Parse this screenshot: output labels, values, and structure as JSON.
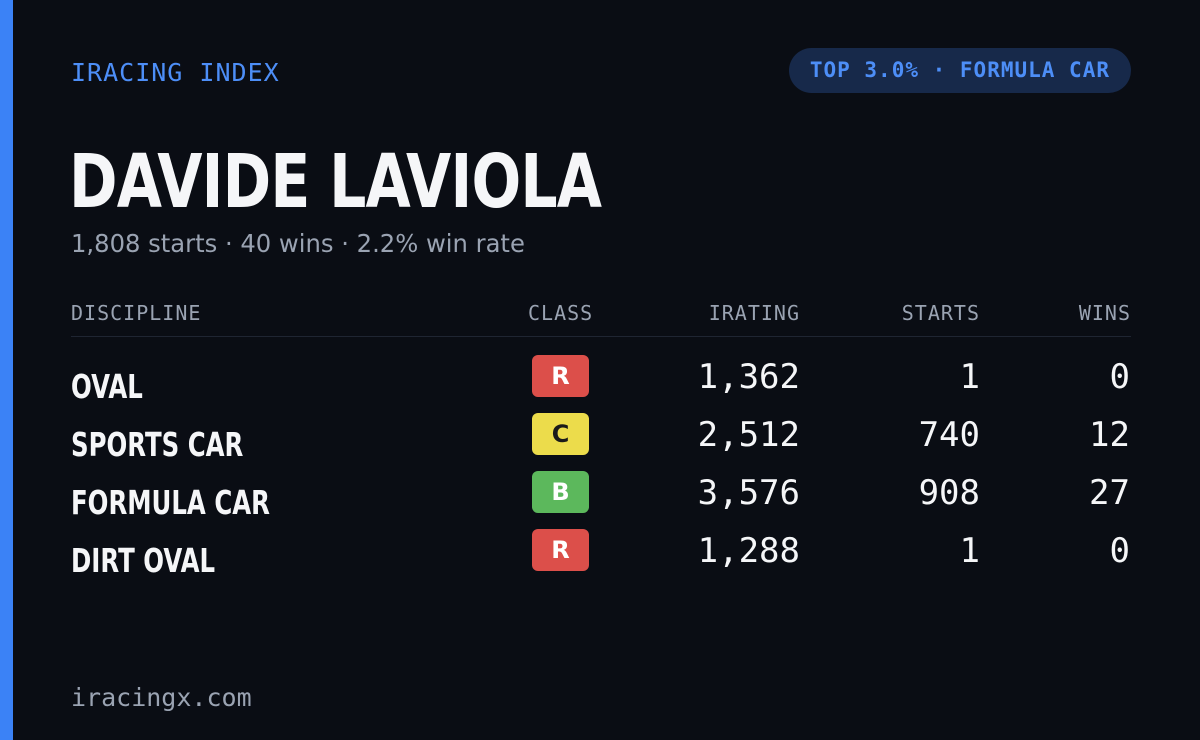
{
  "brand": "IRACING INDEX",
  "rank_badge": "TOP 3.0% · FORMULA CAR",
  "driver_name": "DAVIDE LAVIOLA",
  "summary": "1,808 starts · 40 wins · 2.2% win rate",
  "table": {
    "headers": {
      "discipline": "DISCIPLINE",
      "class": "CLASS",
      "irating": "IRATING",
      "starts": "STARTS",
      "wins": "WINS"
    },
    "rows": [
      {
        "discipline": "OVAL",
        "class": "R",
        "irating": "1,362",
        "starts": "1",
        "wins": "0"
      },
      {
        "discipline": "SPORTS CAR",
        "class": "C",
        "irating": "2,512",
        "starts": "740",
        "wins": "12"
      },
      {
        "discipline": "FORMULA CAR",
        "class": "B",
        "irating": "3,576",
        "starts": "908",
        "wins": "27"
      },
      {
        "discipline": "DIRT OVAL",
        "class": "R",
        "irating": "1,288",
        "starts": "1",
        "wins": "0"
      }
    ]
  },
  "footer": "iracingx.com",
  "colors": {
    "background": "#0a0d14",
    "accent": "#3b82f6",
    "class_R": "#dc4f4a",
    "class_C": "#ecdc4b",
    "class_B": "#5cb85c"
  }
}
